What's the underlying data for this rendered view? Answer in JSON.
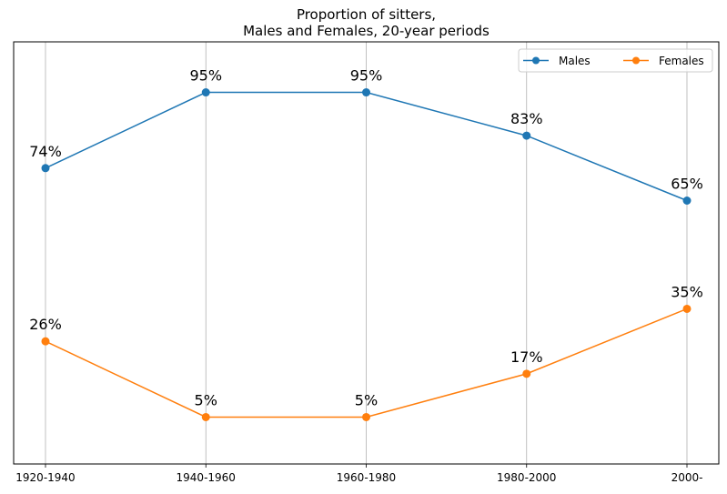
{
  "chart_data": {
    "type": "line",
    "title": "Proportion of sitters,",
    "subtitle": "Males and Females, 20-year periods",
    "categories": [
      "1920-1940",
      "1940-1960",
      "1960-1980",
      "1980-2000",
      "2000-"
    ],
    "series": [
      {
        "name": "Males",
        "color": "#1f77b4",
        "values": [
          74,
          95,
          95,
          83,
          65
        ],
        "labels": [
          "74%",
          "95%",
          "95%",
          "83%",
          "65%"
        ]
      },
      {
        "name": "Females",
        "color": "#ff7f0e",
        "values": [
          26,
          5,
          5,
          17,
          35
        ],
        "labels": [
          "26%",
          "5%",
          "5%",
          "17%",
          "35%"
        ]
      }
    ],
    "ylim": [
      -8,
      109
    ],
    "grid": "vertical",
    "legend": "top-right",
    "legend_columns": 2
  }
}
